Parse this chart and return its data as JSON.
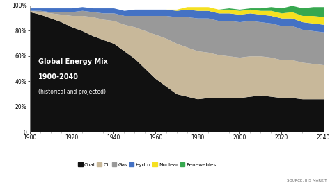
{
  "years": [
    1900,
    1905,
    1910,
    1915,
    1920,
    1925,
    1930,
    1935,
    1940,
    1945,
    1950,
    1955,
    1960,
    1965,
    1970,
    1975,
    1980,
    1985,
    1990,
    1995,
    2000,
    2005,
    2010,
    2015,
    2020,
    2025,
    2030,
    2035,
    2040
  ],
  "coal": [
    95,
    93,
    90,
    87,
    83,
    80,
    76,
    73,
    70,
    64,
    58,
    50,
    42,
    36,
    30,
    28,
    26,
    27,
    27,
    27,
    27,
    28,
    29,
    28,
    27,
    27,
    26,
    26,
    26
  ],
  "oil": [
    1,
    2,
    4,
    6,
    9,
    12,
    15,
    16,
    18,
    21,
    25,
    30,
    35,
    38,
    40,
    39,
    38,
    36,
    34,
    33,
    32,
    32,
    31,
    31,
    30,
    30,
    29,
    28,
    27
  ],
  "gas": [
    0,
    1,
    1,
    2,
    3,
    4,
    4,
    5,
    6,
    7,
    9,
    12,
    15,
    18,
    21,
    24,
    26,
    27,
    27,
    28,
    28,
    28,
    27,
    27,
    27,
    27,
    26,
    26,
    26
  ],
  "hydro": [
    2,
    2,
    3,
    3,
    3,
    3,
    3,
    4,
    4,
    4,
    5,
    5,
    5,
    5,
    5,
    6,
    6,
    6,
    6,
    6,
    6,
    6,
    6,
    6,
    6,
    6,
    6,
    6,
    6
  ],
  "nuclear": [
    0,
    0,
    0,
    0,
    0,
    0,
    0,
    0,
    0,
    0,
    0,
    0,
    0,
    0,
    1,
    2,
    3,
    3,
    3,
    3,
    3,
    3,
    3,
    4,
    4,
    5,
    5,
    6,
    6
  ],
  "renewables": [
    0,
    0,
    0,
    0,
    0,
    0,
    0,
    0,
    0,
    0,
    0,
    0,
    0,
    0,
    0,
    0,
    0,
    0,
    0,
    1,
    1,
    1,
    2,
    3,
    4,
    5,
    6,
    7,
    8
  ],
  "colors": {
    "coal": "#111111",
    "oil": "#c8b89a",
    "gas": "#999999",
    "hydro": "#4472c4",
    "nuclear": "#f5e020",
    "renewables": "#37a84f"
  },
  "labels": [
    "Coal",
    "Oil",
    "Gas",
    "Hydro",
    "Nuclear",
    "Renewables"
  ],
  "title_line2": "1900-2040",
  "source_text": "SOURCE: IHS MARKIT",
  "xlim": [
    1900,
    2040
  ],
  "ylim": [
    0,
    100
  ],
  "yticks": [
    0,
    20,
    40,
    60,
    80,
    100
  ],
  "xticks": [
    1900,
    1920,
    1940,
    1960,
    1980,
    2000,
    2020,
    2040
  ],
  "background_color": "#ffffff"
}
